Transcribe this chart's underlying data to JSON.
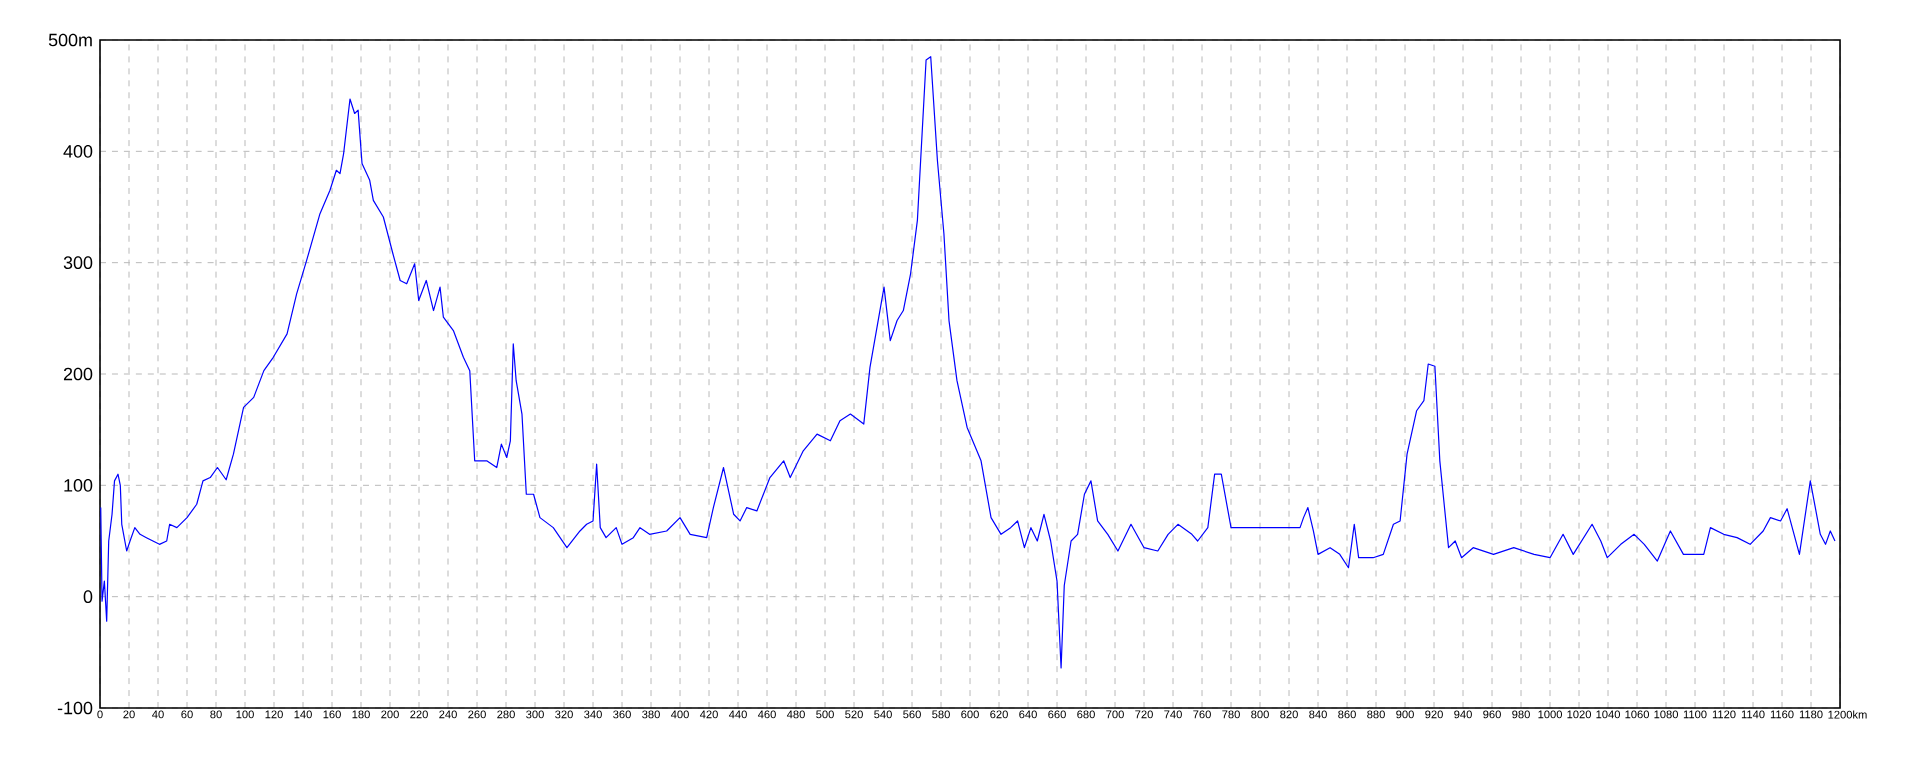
{
  "chart_data": {
    "type": "line",
    "x": [
      0.5,
      1.4,
      3,
      4.6,
      6,
      8.3,
      10,
      12.4,
      14,
      15,
      18.4,
      20.7,
      24,
      27.6,
      32,
      41,
      46,
      48,
      53,
      60,
      66.7,
      71,
      76,
      81,
      87,
      92,
      99,
      106,
      113,
      119.5,
      129,
      135.6,
      142.5,
      151.7,
      158.6,
      163,
      165.5,
      168,
      172.4,
      175.6,
      178,
      180.7,
      186,
      188.5,
      195.4,
      202,
      207,
      211.5,
      217,
      219.8,
      225,
      230,
      234.5,
      236.8,
      243.7,
      250.6,
      255,
      258.4,
      266.7,
      273.6,
      276.8,
      280.5,
      283,
      285,
      287,
      291,
      294,
      299,
      303.4,
      312.6,
      322,
      331,
      335.6,
      340,
      342.5,
      345,
      349,
      356,
      360,
      367.8,
      372.4,
      379,
      390.8,
      400,
      407,
      418.4,
      423,
      430,
      437,
      441.4,
      446,
      453,
      462,
      471.5,
      476,
      485,
      494.5,
      503.7,
      510.3,
      517.5,
      526.7,
      531,
      540.7,
      545,
      549.7,
      554,
      559,
      563.7,
      569.7,
      572.9,
      577.5,
      582,
      585.5,
      591,
      598,
      607.6,
      614.5,
      621.4,
      628,
      632.8,
      637.5,
      642,
      646.4,
      651,
      655.6,
      660,
      662.8,
      665,
      669.7,
      674.2,
      678.9,
      683.4,
      688,
      695,
      702,
      711,
      720,
      729.5,
      736.6,
      743.4,
      753,
      757,
      764,
      768.7,
      773.3,
      780,
      805.5,
      827.6,
      830,
      833,
      836.8,
      840,
      848.3,
      855,
      861,
      865,
      868,
      878,
      885,
      892,
      896.6,
      901.4,
      908,
      913,
      916,
      920.6,
      924,
      930,
      934.6,
      939,
      947,
      961,
      975,
      989,
      1000,
      1009,
      1016,
      1029,
      1035,
      1039.5,
      1048.8,
      1058,
      1065,
      1074,
      1083,
      1092,
      1106,
      1110.6,
      1119.8,
      1129,
      1138,
      1147,
      1152,
      1159,
      1163.5,
      1172,
      1179.5,
      1186.4,
      1190,
      1193.3,
      1196.5
    ],
    "series": [
      {
        "color": "#0000ff",
        "values": [
          80,
          -4,
          14,
          -22,
          50,
          74,
          104,
          110,
          100,
          65,
          41,
          50,
          62,
          56,
          53,
          47,
          50,
          65,
          62,
          71,
          83,
          104,
          107,
          116,
          105,
          128,
          170,
          179,
          203,
          215,
          236,
          272,
          302,
          344,
          365,
          383,
          380,
          398,
          447,
          434,
          437,
          389,
          374,
          356,
          341,
          308,
          284,
          281,
          299,
          266,
          284,
          257,
          278,
          251,
          239,
          215,
          203,
          122,
          122,
          116,
          137,
          125,
          140,
          227,
          194,
          164,
          92,
          92,
          71,
          62,
          44,
          59,
          65,
          68,
          119,
          62,
          53,
          62,
          47,
          53,
          62,
          56,
          59,
          71,
          56,
          53,
          80,
          116,
          74,
          68,
          80,
          77,
          107,
          122,
          107,
          131,
          146,
          140,
          158,
          164,
          155,
          206,
          278,
          230,
          248,
          257,
          290,
          338,
          482,
          485,
          392,
          326,
          248,
          194,
          152,
          122,
          71,
          56,
          62,
          68,
          44,
          62,
          50,
          74,
          50,
          14,
          -64,
          10,
          50,
          56,
          92,
          104,
          68,
          56,
          41,
          65,
          44,
          41,
          56,
          65,
          56,
          50,
          62,
          110,
          110,
          62,
          62,
          62,
          71,
          80,
          59,
          38,
          44,
          38,
          26,
          65,
          35,
          35,
          38,
          65,
          68,
          128,
          167,
          176,
          209,
          207,
          122,
          44,
          50,
          35,
          44,
          38,
          44,
          38,
          35,
          56,
          38,
          65,
          50,
          35,
          47,
          56,
          47,
          32,
          59,
          38,
          38,
          62,
          56,
          53,
          47,
          59,
          71,
          68,
          79,
          38,
          104,
          56,
          47,
          59,
          50
        ]
      }
    ],
    "xlim": [
      0,
      1200
    ],
    "ylim": [
      -100,
      500
    ],
    "xticks": [
      0,
      20,
      40,
      60,
      80,
      100,
      120,
      140,
      160,
      180,
      200,
      220,
      240,
      260,
      280,
      300,
      320,
      340,
      360,
      380,
      400,
      420,
      440,
      460,
      480,
      500,
      520,
      540,
      560,
      580,
      600,
      620,
      640,
      660,
      680,
      700,
      720,
      740,
      760,
      780,
      800,
      820,
      840,
      860,
      880,
      900,
      920,
      940,
      960,
      980,
      1000,
      1020,
      1040,
      1060,
      1080,
      1100,
      1120,
      1140,
      1160,
      1180,
      {
        "value": 1200,
        "label": "1200km"
      }
    ],
    "yticks": [
      -100,
      0,
      100,
      200,
      300,
      400,
      {
        "value": 500,
        "label": "500m"
      }
    ],
    "grid": true,
    "line_style": "solid",
    "marker": "none"
  }
}
